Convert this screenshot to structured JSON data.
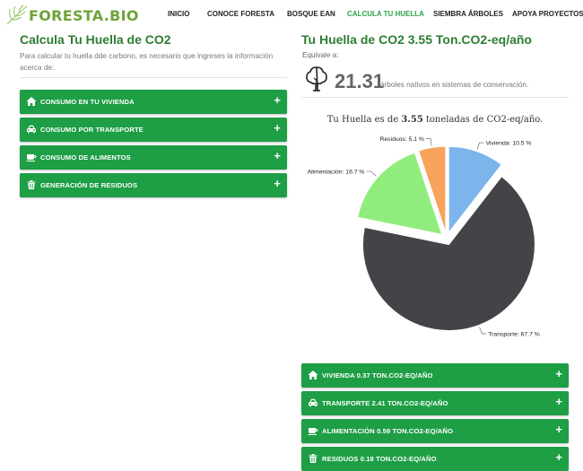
{
  "header": {
    "logo_text": "FORESTA.BIO",
    "nav": [
      {
        "label": "INICIO",
        "active": false
      },
      {
        "label": "CONOCE FORESTA",
        "active": false
      },
      {
        "label": "BOSQUE EAN",
        "active": false
      },
      {
        "label": "CALCULA TU HUELLA",
        "active": true
      },
      {
        "label": "SIEMBRA ÁRBOLES",
        "active": false
      },
      {
        "label": "APOYA PROYECTOS",
        "active": false
      }
    ]
  },
  "left": {
    "title": "Calcula Tu Huella de CO2",
    "description": "Para calcular tu huella dde carbono, es necesario que ingreses la información acerca de:",
    "sections": [
      {
        "label": "CONSUMO EN TU VIVIENDA",
        "icon": "home-icon"
      },
      {
        "label": "CONSUMO POR TRANSPORTE",
        "icon": "car-icon"
      },
      {
        "label": "CONSUMO DE ALIMENTOS",
        "icon": "coffee-icon"
      },
      {
        "label": "GENERACIÓN DE RESIDUOS",
        "icon": "trash-icon"
      }
    ],
    "plus": "+"
  },
  "right": {
    "title": "Tu Huella de CO2 3.55 Ton.CO2-eq/año",
    "equivale": "Equivale a:",
    "trees_value": "21.31",
    "trees_text": "árboles nativos en sistemas de conservación.",
    "summary_prefix": "Tu Huella es de",
    "summary_value": "3.55",
    "summary_suffix": "toneladas de CO2-eq/año.",
    "results": [
      {
        "name": "VIVIENDA",
        "value": "0.37",
        "unit": "TON.CO2-EQ/AÑO",
        "icon": "home-icon"
      },
      {
        "name": "TRANSPORTE",
        "value": "2.41",
        "unit": "TON.CO2-EQ/AÑO",
        "icon": "car-icon"
      },
      {
        "name": "ALIMENTACIÓN",
        "value": "0.59",
        "unit": "TON.CO2-EQ/AÑO",
        "icon": "coffee-icon"
      },
      {
        "name": "RESIDUOS",
        "value": "0.18",
        "unit": "TON.CO2-EQ/AÑO",
        "icon": "trash-icon"
      }
    ]
  },
  "colors": {
    "accent_green": "#1e9e45",
    "title_green": "#2e7d32",
    "nav_active": "#2aa14a"
  },
  "chart_data": {
    "type": "pie",
    "categories": [
      "Vivienda",
      "Transporte",
      "Alimentación",
      "Residuos"
    ],
    "values": [
      10.5,
      67.7,
      16.7,
      5.1
    ],
    "labels": [
      "Vivienda: 10.5 %",
      "Transporte: 67.7 %",
      "Alimentación: 16.7 %",
      "Residuos: 5.1 %"
    ],
    "colors": [
      "#7cb5ec",
      "#434348",
      "#90ed7d",
      "#f7a35c"
    ],
    "exploded": true
  }
}
